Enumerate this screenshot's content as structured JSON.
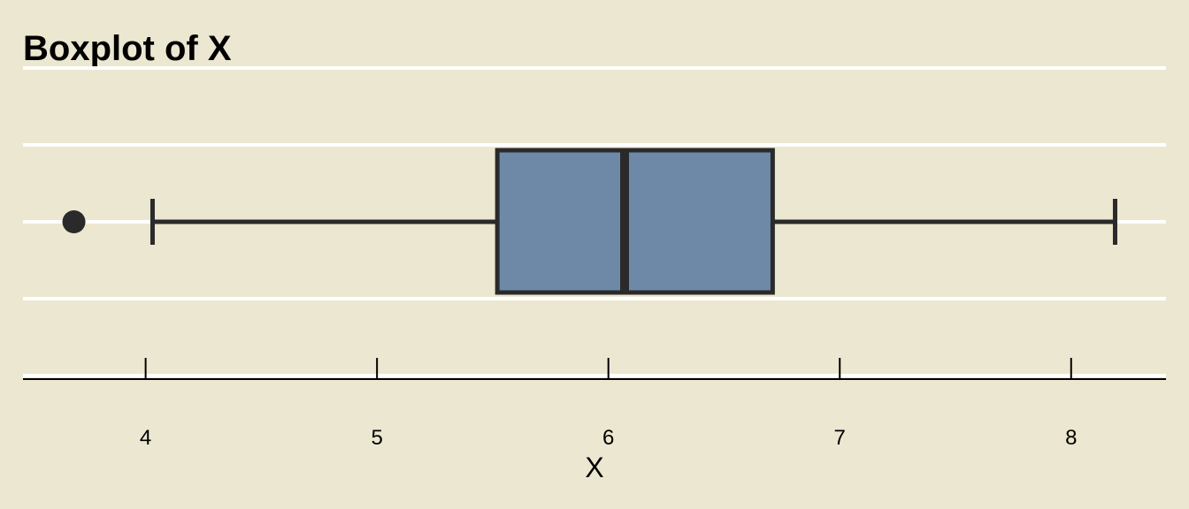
{
  "chart_data": {
    "type": "boxplot",
    "title": "Boxplot of X",
    "xlabel": "X",
    "xlim": [
      3.47,
      8.41
    ],
    "ticks": [
      4,
      5,
      6,
      7,
      8
    ],
    "tick_labels": [
      "4",
      "5",
      "6",
      "7",
      "8"
    ],
    "whisker_low": 4.03,
    "q1": 5.52,
    "median": 6.07,
    "q3": 6.71,
    "whisker_high": 8.19,
    "outliers": [
      3.69
    ],
    "grid": true,
    "colors": {
      "background": "#ece7d0",
      "box_fill": "#6e89a8",
      "box_stroke": "#2a2a2a",
      "gridline": "#ffffff"
    }
  }
}
